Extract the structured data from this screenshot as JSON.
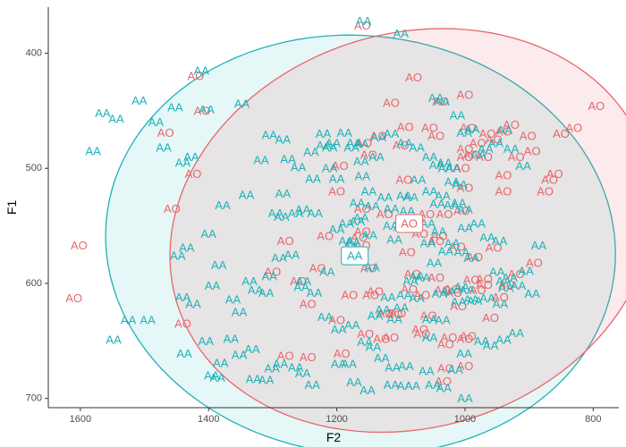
{
  "colors": {
    "AO": "#e8666a",
    "AA": "#1fb2b8",
    "axis": "#333333"
  },
  "chart_data": {
    "type": "scatter",
    "title": "",
    "xlabel": "F2",
    "ylabel": "F1",
    "x_reversed": true,
    "y_reversed": true,
    "xlim": [
      1650,
      760
    ],
    "ylim": [
      360,
      708
    ],
    "x_ticks": [
      1600,
      1400,
      1200,
      1000,
      800
    ],
    "y_ticks": [
      400,
      500,
      600,
      700
    ],
    "grid": false,
    "legend": "none",
    "series": [
      {
        "name": "AO",
        "points": [
          [
            1602,
            567
          ],
          [
            1610,
            613
          ],
          [
            1420,
            420
          ],
          [
            1410,
            450
          ],
          [
            1440,
            635
          ],
          [
            1457,
            535
          ],
          [
            1424,
            505
          ],
          [
            1467,
            469
          ],
          [
            1300,
            590
          ],
          [
            1280,
            563
          ],
          [
            1230,
            587
          ],
          [
            1218,
            559
          ],
          [
            1200,
            632
          ],
          [
            1192,
            661
          ],
          [
            1180,
            610
          ],
          [
            1165,
            560
          ],
          [
            1160,
            555
          ],
          [
            1160,
            567
          ],
          [
            1155,
            644
          ],
          [
            1150,
            587
          ],
          [
            1147,
            610
          ],
          [
            1140,
            607
          ],
          [
            1130,
            648
          ],
          [
            1124,
            626
          ],
          [
            1116,
            647
          ],
          [
            1110,
            627
          ],
          [
            1105,
            626
          ],
          [
            1090,
            573
          ],
          [
            1087,
            605
          ],
          [
            1082,
            592
          ],
          [
            1070,
            640
          ],
          [
            1067,
            644
          ],
          [
            1067,
            610
          ],
          [
            1057,
            628
          ],
          [
            1045,
            595
          ],
          [
            1040,
            559
          ],
          [
            1035,
            606
          ],
          [
            1030,
            653
          ],
          [
            1025,
            647
          ],
          [
            1020,
            605
          ],
          [
            1017,
            608
          ],
          [
            1010,
            620
          ],
          [
            1000,
            648
          ],
          [
            995,
            646
          ],
          [
            990,
            597
          ],
          [
            985,
            577
          ],
          [
            980,
            606
          ],
          [
            970,
            601
          ],
          [
            960,
            630
          ],
          [
            955,
            569
          ],
          [
            945,
            612
          ],
          [
            935,
            601
          ],
          [
            920,
            592
          ],
          [
            1000,
            672
          ],
          [
            1034,
            685
          ],
          [
            1245,
            664
          ],
          [
            1280,
            663
          ],
          [
            1200,
            520
          ],
          [
            1195,
            498
          ],
          [
            1158,
            478
          ],
          [
            1160,
            535
          ],
          [
            1150,
            488
          ],
          [
            1125,
            540
          ],
          [
            1095,
            510
          ],
          [
            1100,
            480
          ],
          [
            1090,
            551
          ],
          [
            1070,
            557
          ],
          [
            1060,
            540
          ],
          [
            1045,
            563
          ],
          [
            1032,
            540
          ],
          [
            1012,
            568
          ],
          [
            1005,
            537
          ],
          [
            1000,
            517
          ],
          [
            1005,
            500
          ],
          [
            1000,
            490
          ],
          [
            990,
            488
          ],
          [
            995,
            465
          ],
          [
            980,
            478
          ],
          [
            970,
            490
          ],
          [
            965,
            470
          ],
          [
            955,
            475
          ],
          [
            940,
            468
          ],
          [
            928,
            462
          ],
          [
            920,
            490
          ],
          [
            902,
            472
          ],
          [
            895,
            485
          ],
          [
            875,
            520
          ],
          [
            868,
            510
          ],
          [
            860,
            505
          ],
          [
            850,
            470
          ],
          [
            830,
            465
          ],
          [
            795,
            446
          ],
          [
            940,
            520
          ],
          [
            940,
            506
          ],
          [
            1000,
            483
          ],
          [
            1045,
            472
          ],
          [
            1038,
            442
          ],
          [
            1000,
            436
          ],
          [
            1093,
            464
          ],
          [
            1115,
            443
          ],
          [
            1080,
            421
          ],
          [
            1055,
            465
          ],
          [
            1135,
            472
          ],
          [
            1160,
            376
          ],
          [
            1245,
            618
          ],
          [
            1260,
            598
          ],
          [
            1030,
            674
          ],
          [
            970,
            596
          ],
          [
            892,
            582
          ]
        ]
      },
      {
        "name": "AA",
        "points": [
          [
            1565,
            452
          ],
          [
            1544,
            457
          ],
          [
            1580,
            485
          ],
          [
            1482,
            460
          ],
          [
            1508,
            441
          ],
          [
            1440,
            495
          ],
          [
            1427,
            490
          ],
          [
            1452,
            447
          ],
          [
            1470,
            482
          ],
          [
            1411,
            415
          ],
          [
            1403,
            449
          ],
          [
            1348,
            444
          ],
          [
            1284,
            475
          ],
          [
            1276,
            492
          ],
          [
            1295,
            539
          ],
          [
            1284,
            522
          ],
          [
            1264,
            539
          ],
          [
            1253,
            536
          ],
          [
            1234,
            539
          ],
          [
            1221,
            470
          ],
          [
            1211,
            500
          ],
          [
            1185,
            548
          ],
          [
            1177,
            569
          ],
          [
            1168,
            546
          ],
          [
            1162,
            543
          ],
          [
            1149,
            558
          ],
          [
            1145,
            586
          ],
          [
            1140,
            628
          ],
          [
            1120,
            612
          ],
          [
            1116,
            550
          ],
          [
            1110,
            562
          ],
          [
            1100,
            621
          ],
          [
            1095,
            610
          ],
          [
            1085,
            598
          ],
          [
            1075,
            613
          ],
          [
            1066,
            595
          ],
          [
            1055,
            631
          ],
          [
            1048,
            582
          ],
          [
            1040,
            609
          ],
          [
            1026,
            607
          ],
          [
            1010,
            616
          ],
          [
            1005,
            603
          ],
          [
            997,
            606
          ],
          [
            985,
            615
          ],
          [
            965,
            613
          ],
          [
            950,
            590
          ],
          [
            940,
            598
          ],
          [
            930,
            595
          ],
          [
            917,
            602
          ],
          [
            895,
            609
          ],
          [
            1000,
            552
          ],
          [
            1010,
            530
          ],
          [
            1021,
            532
          ],
          [
            1043,
            531
          ],
          [
            1058,
            565
          ],
          [
            1075,
            594
          ],
          [
            1090,
            537
          ],
          [
            1100,
            551
          ],
          [
            1115,
            535
          ],
          [
            1125,
            525
          ],
          [
            1150,
            520
          ],
          [
            1168,
            530
          ],
          [
            1175,
            564
          ],
          [
            1185,
            563
          ],
          [
            1200,
            553
          ],
          [
            1215,
            590
          ],
          [
            1235,
            608
          ],
          [
            1252,
            598
          ],
          [
            1270,
            575
          ],
          [
            1290,
            578
          ],
          [
            1305,
            594
          ],
          [
            1310,
            608
          ],
          [
            1327,
            606
          ],
          [
            1336,
            598
          ],
          [
            1352,
            625
          ],
          [
            1362,
            614
          ],
          [
            1384,
            584
          ],
          [
            1394,
            602
          ],
          [
            1424,
            618
          ],
          [
            1440,
            612
          ],
          [
            1448,
            576
          ],
          [
            1434,
            569
          ],
          [
            1400,
            557
          ],
          [
            1378,
            532
          ],
          [
            1341,
            523
          ],
          [
            1318,
            493
          ],
          [
            1305,
            471
          ],
          [
            1286,
            542
          ],
          [
            1255,
            603
          ],
          [
            1218,
            629
          ],
          [
            1197,
            640
          ],
          [
            1176,
            636
          ],
          [
            1156,
            651
          ],
          [
            1143,
            655
          ],
          [
            1130,
            665
          ],
          [
            1113,
            673
          ],
          [
            1092,
            672
          ],
          [
            1060,
            676
          ],
          [
            1033,
            691
          ],
          [
            1015,
            675
          ],
          [
            1001,
            661
          ],
          [
            974,
            650
          ],
          [
            960,
            654
          ],
          [
            940,
            649
          ],
          [
            920,
            643
          ],
          [
            1000,
            700
          ],
          [
            1050,
            688
          ],
          [
            1082,
            689
          ],
          [
            1094,
            689
          ],
          [
            1115,
            688
          ],
          [
            1152,
            693
          ],
          [
            1173,
            686
          ],
          [
            1181,
            670
          ],
          [
            1197,
            670
          ],
          [
            1238,
            688
          ],
          [
            1253,
            678
          ],
          [
            1264,
            673
          ],
          [
            1288,
            670
          ],
          [
            1301,
            674
          ],
          [
            1332,
            657
          ],
          [
            1352,
            662
          ],
          [
            1365,
            648
          ],
          [
            1404,
            650
          ],
          [
            1438,
            661
          ],
          [
            1548,
            649
          ],
          [
            1525,
            632
          ],
          [
            1495,
            632
          ],
          [
            1395,
            680
          ],
          [
            1381,
            669
          ],
          [
            1386,
            682
          ],
          [
            1330,
            683
          ],
          [
            1310,
            684
          ],
          [
            1158,
            372
          ],
          [
            1100,
            383
          ],
          [
            1045,
            439
          ],
          [
            1036,
            442
          ],
          [
            1012,
            454
          ],
          [
            1001,
            469
          ],
          [
            989,
            466
          ],
          [
            979,
            488
          ],
          [
            968,
            483
          ],
          [
            952,
            478
          ],
          [
            938,
            467
          ],
          [
            928,
            483
          ],
          [
            909,
            498
          ],
          [
            885,
            567
          ],
          [
            905,
            589
          ],
          [
            936,
            604
          ],
          [
            945,
            618
          ],
          [
            990,
            614
          ],
          [
            1035,
            632
          ],
          [
            1055,
            647
          ],
          [
            1110,
            631
          ],
          [
            1128,
            623
          ],
          [
            1145,
            533
          ],
          [
            1160,
            507
          ],
          [
            1200,
            509
          ],
          [
            1237,
            509
          ],
          [
            1260,
            499
          ],
          [
            1240,
            486
          ],
          [
            1211,
            482
          ],
          [
            1177,
            482
          ],
          [
            1162,
            479
          ],
          [
            1135,
            473
          ],
          [
            1115,
            470
          ],
          [
            1094,
            478
          ],
          [
            1075,
            482
          ],
          [
            1055,
            490
          ],
          [
            1044,
            497
          ],
          [
            1030,
            500
          ],
          [
            1020,
            512
          ],
          [
            1008,
            514
          ],
          [
            1019,
            500
          ],
          [
            1032,
            495
          ],
          [
            1085,
            525
          ],
          [
            1095,
            524
          ],
          [
            1083,
            544
          ],
          [
            1055,
            520
          ],
          [
            1035,
            524
          ],
          [
            1000,
            536
          ],
          [
            980,
            548
          ],
          [
            965,
            560
          ],
          [
            946,
            563
          ],
          [
            990,
            578
          ],
          [
            1005,
            573
          ],
          [
            1020,
            565
          ],
          [
            1030,
            572
          ],
          [
            1041,
            555
          ],
          [
            1058,
            548
          ],
          [
            1073,
            510
          ],
          [
            1138,
            490
          ],
          [
            1162,
            494
          ],
          [
            1173,
            478
          ],
          [
            1188,
            469
          ],
          [
            1206,
            478
          ],
          [
            1220,
            480
          ]
        ]
      }
    ],
    "ellipses": [
      {
        "series": "AO",
        "center": [
          1087,
          548
        ],
        "label": "AO"
      },
      {
        "series": "AA",
        "center": [
          1172,
          576
        ],
        "label": "AA"
      }
    ]
  }
}
